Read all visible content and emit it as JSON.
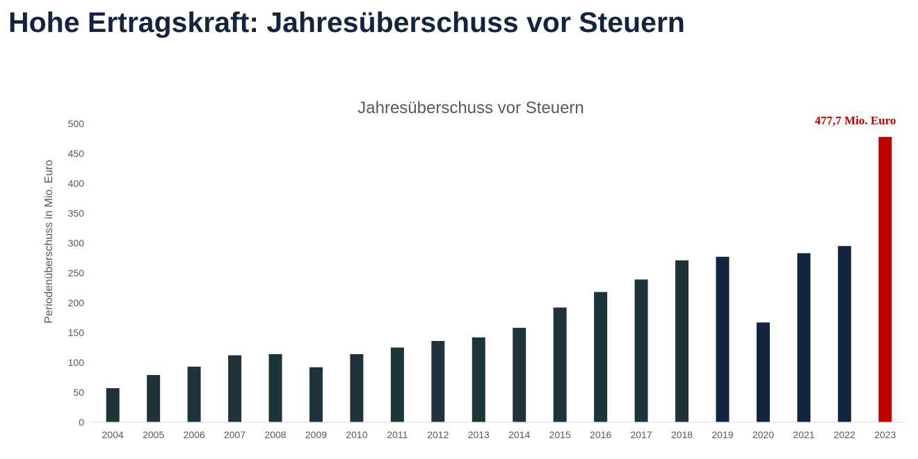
{
  "page": {
    "title": "Hohe Ertragskraft: Jahresüberschuss vor Steuern"
  },
  "chart_data": {
    "type": "bar",
    "title": "Jahresüberschuss vor Steuern",
    "xlabel": "",
    "ylabel": "Periodenüberschuss in Mio. Euro",
    "ylim": [
      0,
      500
    ],
    "yticks": [
      0,
      50,
      100,
      150,
      200,
      250,
      300,
      350,
      400,
      450,
      500
    ],
    "grid": false,
    "categories": [
      "2004",
      "2005",
      "2006",
      "2007",
      "2008",
      "2009",
      "2010",
      "2011",
      "2012",
      "2013",
      "2014",
      "2015",
      "2016",
      "2017",
      "2018",
      "2019",
      "2020",
      "2021",
      "2022",
      "2023"
    ],
    "values": [
      57,
      79,
      93,
      112,
      114,
      92,
      114,
      125,
      136,
      142,
      158,
      192,
      218,
      239,
      271,
      277,
      167,
      283,
      295,
      477.7
    ],
    "bar_colors": [
      "#1f333b",
      "#1f333b",
      "#1f333b",
      "#1f333b",
      "#1f333b",
      "#1f333b",
      "#1f333b",
      "#1f333b",
      "#1f333b",
      "#1f333b",
      "#1f333b",
      "#1f333b",
      "#1f333b",
      "#1f333b",
      "#1f333b",
      "#13243f",
      "#13243f",
      "#13243f",
      "#13243f",
      "#c00000"
    ],
    "annotation": {
      "text": "477,7 Mio. Euro",
      "category": "2023",
      "color": "#c00000"
    }
  },
  "colors": {
    "title": "#13243f",
    "axis_text": "#595959",
    "axis_line": "#d9d9d9"
  }
}
